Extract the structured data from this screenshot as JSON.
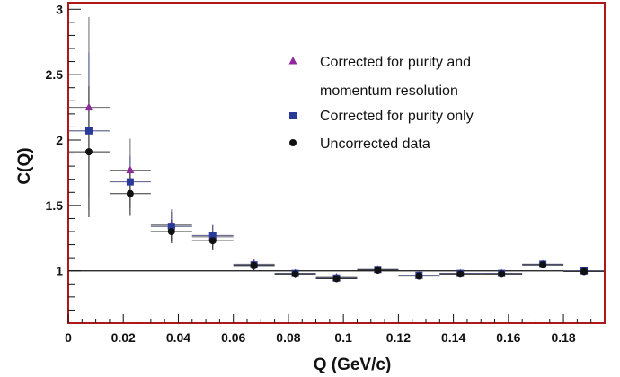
{
  "chart_data": {
    "type": "scatter",
    "title": "",
    "xlabel": "Q (GeV/c)",
    "ylabel": "C(Q)",
    "xlim": [
      0,
      0.195
    ],
    "ylim": [
      0.6,
      3.05
    ],
    "xticks": [
      0,
      0.02,
      0.04,
      0.06,
      0.08,
      0.1,
      0.12,
      0.14,
      0.16,
      0.18
    ],
    "xtick_labels": [
      "0",
      "0.02",
      "0.04",
      "0.06",
      "0.08",
      "0.1",
      "0.12",
      "0.14",
      "0.16",
      "0.18"
    ],
    "yticks": [
      1,
      1.5,
      2,
      2.5,
      3
    ],
    "ytick_labels": [
      "1",
      "1.5",
      "2",
      "2.5",
      "3"
    ],
    "reference_line": 1,
    "frame_color": "#b01818",
    "legend_position": "top-right",
    "legend_lines": [
      "Corrected for purity and",
      "momentum resolution",
      "Corrected for purity only",
      "Uncorrected data"
    ],
    "x_bin_halfwidth": 0.0075,
    "series": [
      {
        "name": "Corrected for purity and momentum resolution",
        "marker": "triangle",
        "color": "#8e2a9a",
        "points": [
          {
            "x": 0.0075,
            "y": 2.25,
            "yerr": 0.69
          },
          {
            "x": 0.0225,
            "y": 1.77,
            "yerr": 0.24
          },
          {
            "x": 0.0375,
            "y": 1.35,
            "yerr": 0.12
          },
          {
            "x": 0.0525,
            "y": 1.26,
            "yerr": 0.09
          },
          {
            "x": 0.0675,
            "y": 1.05,
            "yerr": 0.04
          },
          {
            "x": 0.0825,
            "y": 0.98,
            "yerr": 0.03
          },
          {
            "x": 0.0975,
            "y": 0.95,
            "yerr": 0.02
          },
          {
            "x": 0.1125,
            "y": 1.01,
            "yerr": 0.02
          },
          {
            "x": 0.1275,
            "y": 0.965,
            "yerr": 0.015
          },
          {
            "x": 0.1425,
            "y": 0.98,
            "yerr": 0.015
          },
          {
            "x": 0.1575,
            "y": 0.98,
            "yerr": 0.015
          },
          {
            "x": 0.1725,
            "y": 1.05,
            "yerr": 0.015
          },
          {
            "x": 0.1875,
            "y": 1.0,
            "yerr": 0.015
          }
        ]
      },
      {
        "name": "Corrected for purity only",
        "marker": "square",
        "color": "#2a3a9a",
        "points": [
          {
            "x": 0.0075,
            "y": 2.07,
            "yerr": 0.6
          },
          {
            "x": 0.0225,
            "y": 1.68,
            "yerr": 0.2
          },
          {
            "x": 0.0375,
            "y": 1.34,
            "yerr": 0.11
          },
          {
            "x": 0.0525,
            "y": 1.27,
            "yerr": 0.08
          },
          {
            "x": 0.0675,
            "y": 1.045,
            "yerr": 0.04
          },
          {
            "x": 0.0825,
            "y": 0.98,
            "yerr": 0.03
          },
          {
            "x": 0.0975,
            "y": 0.945,
            "yerr": 0.02
          },
          {
            "x": 0.1125,
            "y": 1.01,
            "yerr": 0.02
          },
          {
            "x": 0.1275,
            "y": 0.965,
            "yerr": 0.015
          },
          {
            "x": 0.1425,
            "y": 0.98,
            "yerr": 0.015
          },
          {
            "x": 0.1575,
            "y": 0.98,
            "yerr": 0.015
          },
          {
            "x": 0.1725,
            "y": 1.05,
            "yerr": 0.015
          },
          {
            "x": 0.1875,
            "y": 1.0,
            "yerr": 0.015
          }
        ]
      },
      {
        "name": "Uncorrected data",
        "marker": "circle",
        "color": "#111111",
        "points": [
          {
            "x": 0.0075,
            "y": 1.91,
            "yerr": 0.5
          },
          {
            "x": 0.0225,
            "y": 1.59,
            "yerr": 0.17
          },
          {
            "x": 0.0375,
            "y": 1.3,
            "yerr": 0.09
          },
          {
            "x": 0.0525,
            "y": 1.23,
            "yerr": 0.07
          },
          {
            "x": 0.0675,
            "y": 1.04,
            "yerr": 0.04
          },
          {
            "x": 0.0825,
            "y": 0.975,
            "yerr": 0.03
          },
          {
            "x": 0.0975,
            "y": 0.94,
            "yerr": 0.02
          },
          {
            "x": 0.1125,
            "y": 1.005,
            "yerr": 0.02
          },
          {
            "x": 0.1275,
            "y": 0.96,
            "yerr": 0.015
          },
          {
            "x": 0.1425,
            "y": 0.975,
            "yerr": 0.015
          },
          {
            "x": 0.1575,
            "y": 0.975,
            "yerr": 0.015
          },
          {
            "x": 0.1725,
            "y": 1.045,
            "yerr": 0.015
          },
          {
            "x": 0.1875,
            "y": 0.995,
            "yerr": 0.015
          }
        ]
      }
    ]
  }
}
